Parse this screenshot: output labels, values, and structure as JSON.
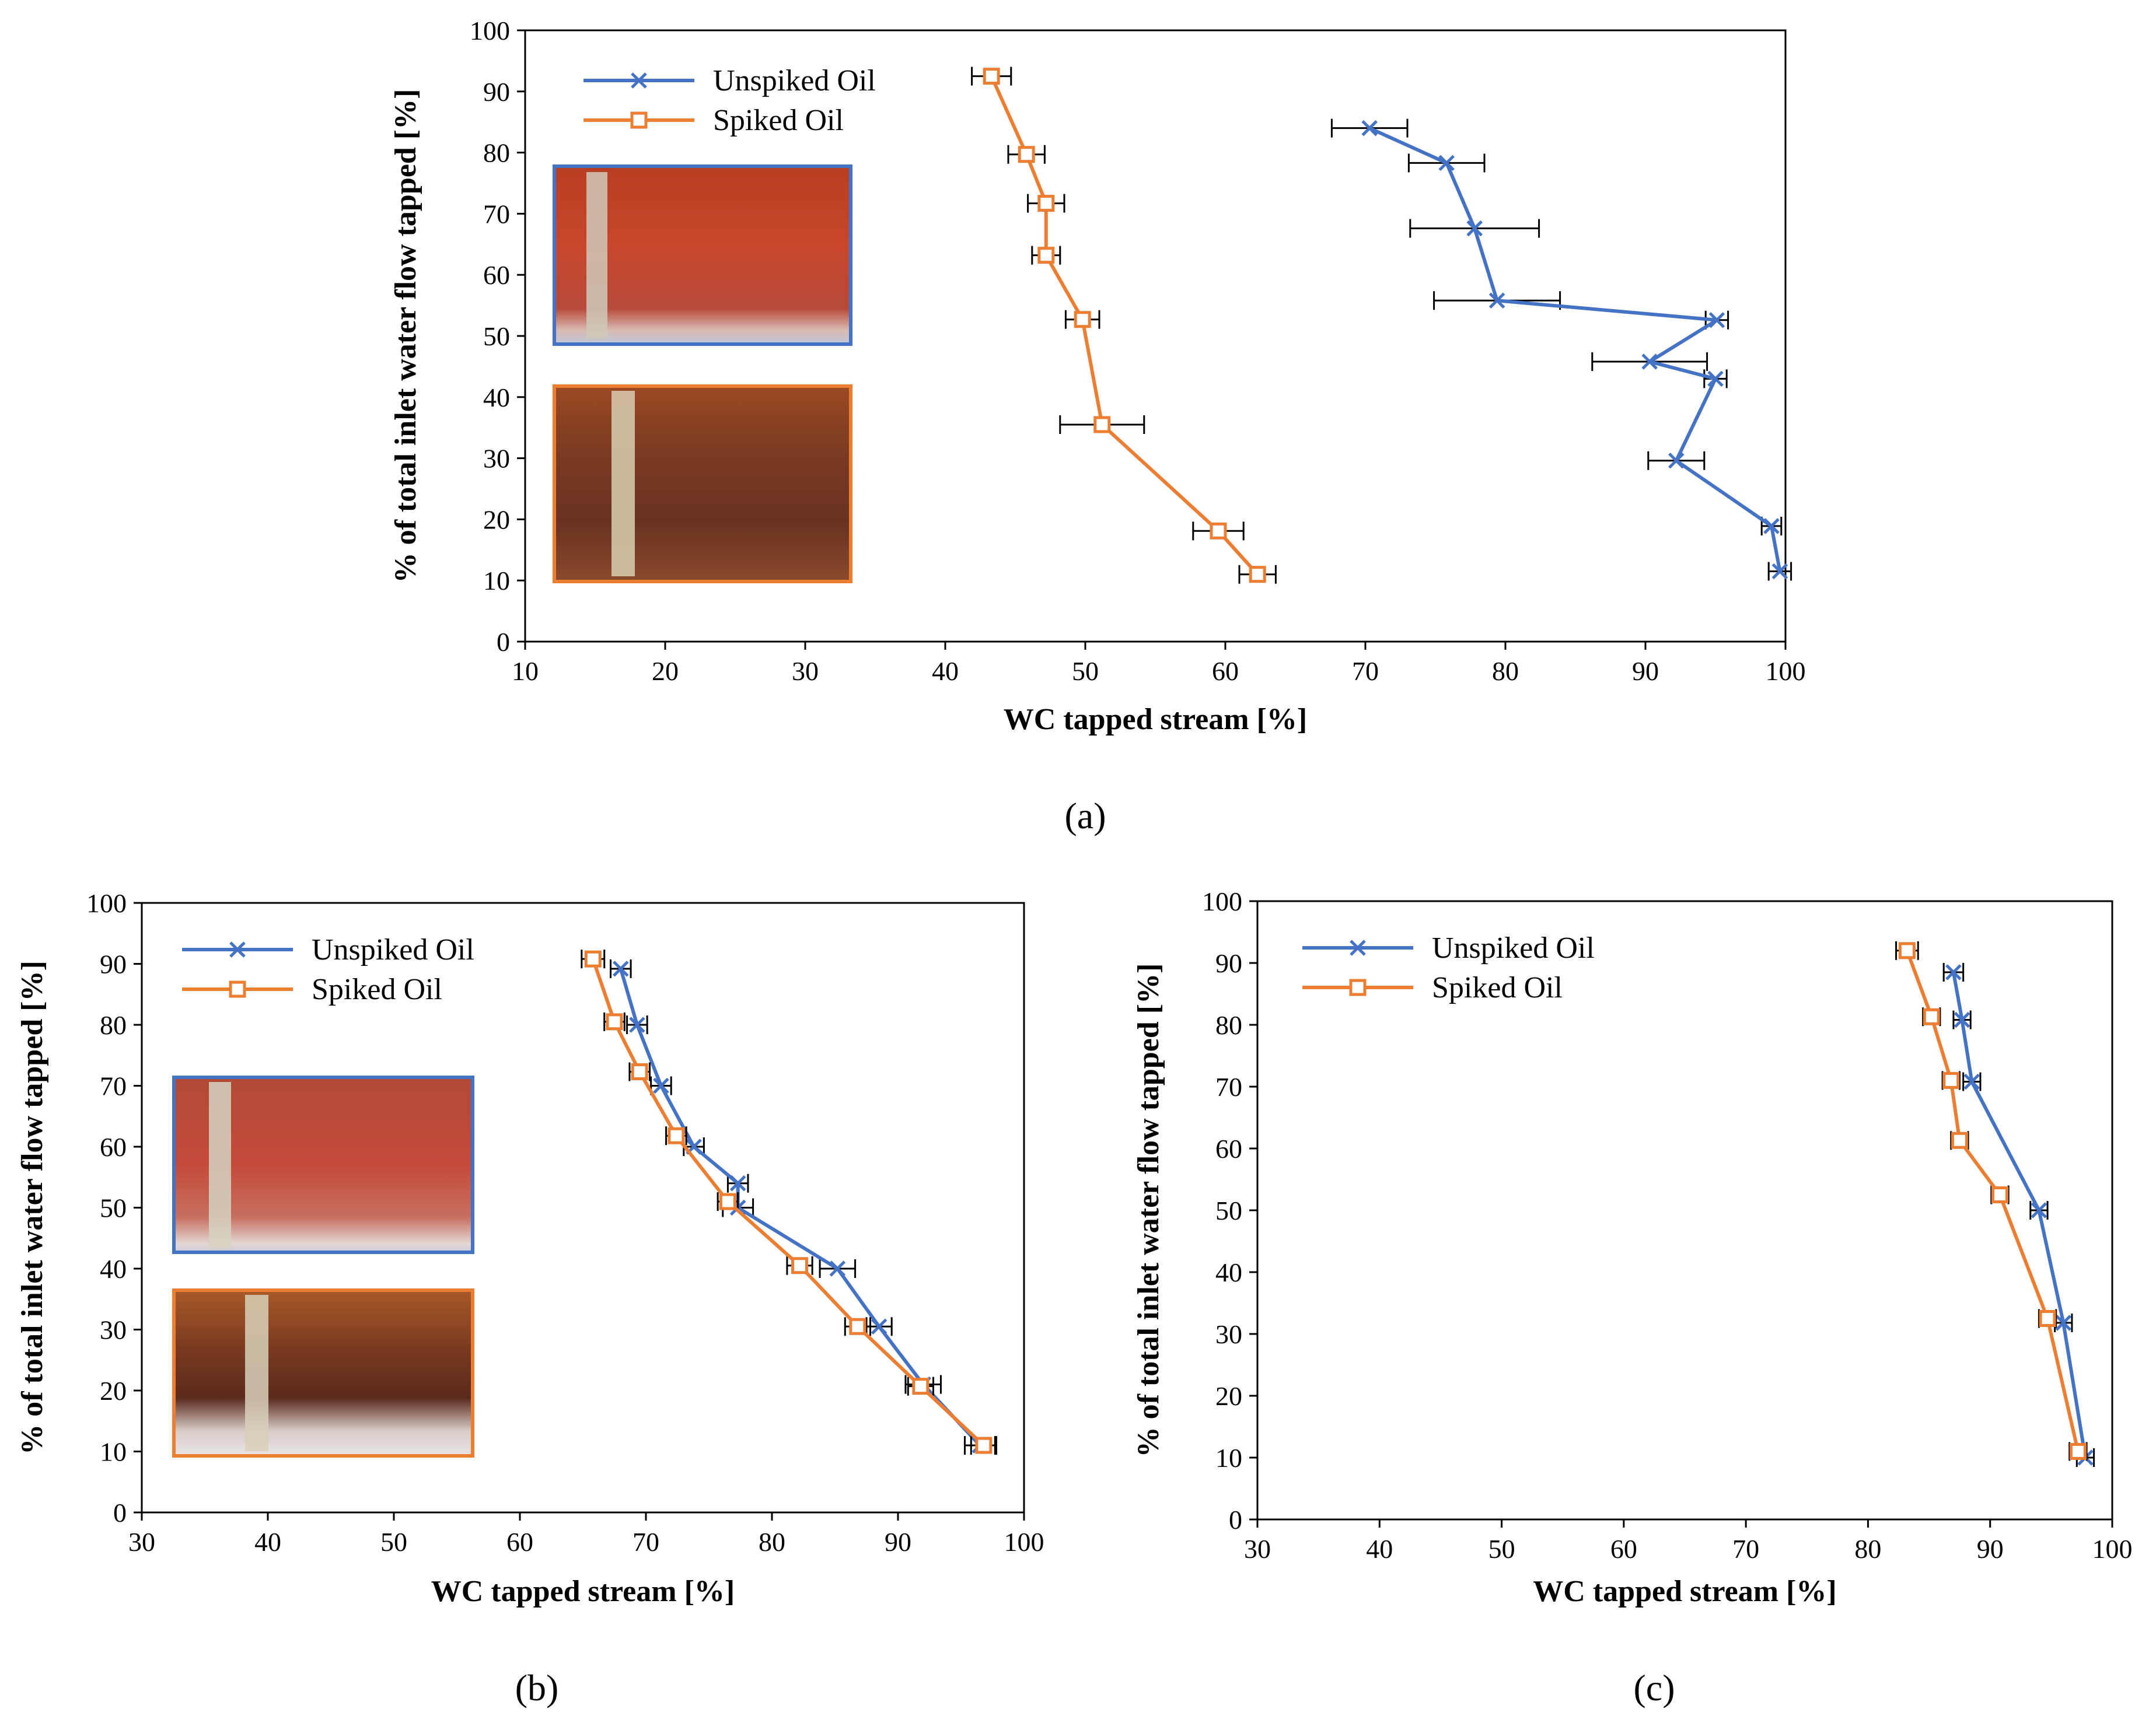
{
  "figure": {
    "colors": {
      "unspiked": "#4472C4",
      "spiked": "#ED7D31",
      "axis": "#000000"
    }
  },
  "chart_data": [
    {
      "id": "a",
      "panel_label": "(a)",
      "type": "line",
      "xlabel": "WC tapped stream [%]",
      "ylabel": "% of total inlet water flow tapped [%]",
      "xlim": [
        10,
        100
      ],
      "ylim": [
        0,
        100
      ],
      "xticks": [
        10,
        20,
        30,
        40,
        50,
        60,
        70,
        80,
        90,
        100
      ],
      "yticks": [
        0,
        10,
        20,
        30,
        40,
        50,
        60,
        70,
        80,
        90,
        100
      ],
      "legend": {
        "position": "top-left",
        "entries": [
          "Unspiked Oil",
          "Spiked Oil"
        ]
      },
      "series": [
        {
          "name": "Unspiked Oil",
          "marker": "x",
          "points": [
            {
              "x": 70.3,
              "y": 84,
              "xerr": 2.7
            },
            {
              "x": 75.8,
              "y": 78.3,
              "xerr": 2.7
            },
            {
              "x": 77.8,
              "y": 67.6,
              "xerr": 4.6
            },
            {
              "x": 79.4,
              "y": 55.8,
              "xerr": 4.5
            },
            {
              "x": 95.1,
              "y": 52.6,
              "xerr": 0.8
            },
            {
              "x": 90.3,
              "y": 45.8,
              "xerr": 4.1
            },
            {
              "x": 95.0,
              "y": 43.0,
              "xerr": 0.8
            },
            {
              "x": 92.2,
              "y": 29.6,
              "xerr": 2.0
            },
            {
              "x": 99.0,
              "y": 18.9,
              "xerr": 0.7
            },
            {
              "x": 99.6,
              "y": 11.5,
              "xerr": 0.8
            }
          ]
        },
        {
          "name": "Spiked Oil",
          "marker": "square",
          "points": [
            {
              "x": 43.3,
              "y": 92.5,
              "xerr": 1.4
            },
            {
              "x": 45.8,
              "y": 79.7,
              "xerr": 1.3
            },
            {
              "x": 47.2,
              "y": 71.7,
              "xerr": 1.3
            },
            {
              "x": 47.2,
              "y": 63.2,
              "xerr": 1.0
            },
            {
              "x": 49.8,
              "y": 52.7,
              "xerr": 1.2
            },
            {
              "x": 51.2,
              "y": 35.5,
              "xerr": 3.0
            },
            {
              "x": 59.5,
              "y": 18.1,
              "xerr": 1.8
            },
            {
              "x": 62.3,
              "y": 11.0,
              "xerr": 1.3
            }
          ]
        }
      ]
    },
    {
      "id": "b",
      "panel_label": "(b)",
      "type": "line",
      "xlabel": "WC tapped stream [%]",
      "ylabel": "% of total inlet water flow tapped [%]",
      "xlim": [
        30,
        100
      ],
      "ylim": [
        0,
        100
      ],
      "xticks": [
        30,
        40,
        50,
        60,
        70,
        80,
        90,
        100
      ],
      "yticks": [
        0,
        10,
        20,
        30,
        40,
        50,
        60,
        70,
        80,
        90,
        100
      ],
      "legend": {
        "position": "top-left",
        "entries": [
          "Unspiked Oil",
          "Spiked Oil"
        ]
      },
      "series": [
        {
          "name": "Unspiked Oil",
          "marker": "x",
          "points": [
            {
              "x": 68.0,
              "y": 89.2,
              "xerr": 0.8
            },
            {
              "x": 69.3,
              "y": 80.0,
              "xerr": 0.8
            },
            {
              "x": 71.2,
              "y": 70.0,
              "xerr": 0.8
            },
            {
              "x": 73.8,
              "y": 60.0,
              "xerr": 0.8
            },
            {
              "x": 77.3,
              "y": 54.0,
              "xerr": 0.8
            },
            {
              "x": 77.3,
              "y": 50.0,
              "xerr": 1.2
            },
            {
              "x": 85.2,
              "y": 40.0,
              "xerr": 1.4
            },
            {
              "x": 88.5,
              "y": 30.5,
              "xerr": 1.0
            },
            {
              "x": 92.0,
              "y": 21.0,
              "xerr": 1.4
            },
            {
              "x": 96.5,
              "y": 11.0,
              "xerr": 1.2
            }
          ]
        },
        {
          "name": "Spiked Oil",
          "marker": "square",
          "points": [
            {
              "x": 65.8,
              "y": 90.8,
              "xerr": 0.9
            },
            {
              "x": 67.5,
              "y": 80.5,
              "xerr": 0.8
            },
            {
              "x": 69.5,
              "y": 72.3,
              "xerr": 0.8
            },
            {
              "x": 72.4,
              "y": 61.8,
              "xerr": 0.8
            },
            {
              "x": 76.5,
              "y": 51.0,
              "xerr": 0.8
            },
            {
              "x": 82.2,
              "y": 40.5,
              "xerr": 1.0
            },
            {
              "x": 86.8,
              "y": 30.5,
              "xerr": 1.0
            },
            {
              "x": 91.8,
              "y": 20.7,
              "xerr": 1.0
            },
            {
              "x": 96.8,
              "y": 11.0,
              "xerr": 1.0
            }
          ]
        }
      ]
    },
    {
      "id": "c",
      "panel_label": "(c)",
      "type": "line",
      "xlabel": "WC tapped stream [%]",
      "ylabel": "% of total inlet water flow tapped [%]",
      "xlim": [
        30,
        100
      ],
      "ylim": [
        0,
        100
      ],
      "xticks": [
        30,
        40,
        50,
        60,
        70,
        80,
        90,
        100
      ],
      "yticks": [
        0,
        10,
        20,
        30,
        40,
        50,
        60,
        70,
        80,
        90,
        100
      ],
      "legend": {
        "position": "top-left",
        "entries": [
          "Unspiked Oil",
          "Spiked Oil"
        ]
      },
      "series": [
        {
          "name": "Unspiked Oil",
          "marker": "x",
          "points": [
            {
              "x": 87.0,
              "y": 88.5,
              "xerr": 0.8
            },
            {
              "x": 87.7,
              "y": 80.8,
              "xerr": 0.7
            },
            {
              "x": 88.5,
              "y": 70.8,
              "xerr": 0.7
            },
            {
              "x": 94.0,
              "y": 50.0,
              "xerr": 0.7
            },
            {
              "x": 96.0,
              "y": 31.8,
              "xerr": 0.7
            },
            {
              "x": 97.8,
              "y": 10.0,
              "xerr": 0.7
            }
          ]
        },
        {
          "name": "Spiked Oil",
          "marker": "square",
          "points": [
            {
              "x": 83.2,
              "y": 92.0,
              "xerr": 0.9
            },
            {
              "x": 85.2,
              "y": 81.3,
              "xerr": 0.7
            },
            {
              "x": 86.8,
              "y": 71.0,
              "xerr": 0.7
            },
            {
              "x": 87.5,
              "y": 61.3,
              "xerr": 0.7
            },
            {
              "x": 90.8,
              "y": 52.5,
              "xerr": 0.7
            },
            {
              "x": 94.7,
              "y": 32.5,
              "xerr": 0.7
            },
            {
              "x": 97.2,
              "y": 11.0,
              "xerr": 0.7
            }
          ]
        }
      ]
    }
  ]
}
